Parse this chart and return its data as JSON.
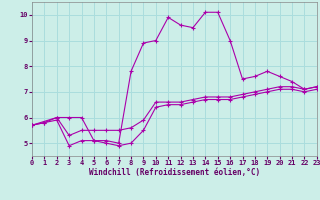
{
  "xlabel": "Windchill (Refroidissement éolien,°C)",
  "bg_color": "#cceee8",
  "grid_color": "#aadddd",
  "line_color": "#aa00aa",
  "xlim": [
    0,
    23
  ],
  "ylim": [
    4.5,
    10.5
  ],
  "xticks": [
    0,
    1,
    2,
    3,
    4,
    5,
    6,
    7,
    8,
    9,
    10,
    11,
    12,
    13,
    14,
    15,
    16,
    17,
    18,
    19,
    20,
    21,
    22,
    23
  ],
  "yticks": [
    5,
    6,
    7,
    8,
    9,
    10
  ],
  "lines": [
    {
      "x": [
        0,
        1,
        2,
        3,
        4,
        5,
        6,
        7,
        8,
        9,
        10,
        11,
        12,
        13,
        14,
        15,
        16,
        17,
        18,
        19,
        20,
        21,
        22,
        23
      ],
      "y": [
        5.7,
        5.8,
        5.9,
        4.9,
        5.1,
        5.1,
        5.0,
        4.9,
        5.0,
        5.5,
        6.4,
        6.5,
        6.5,
        6.6,
        6.7,
        6.7,
        6.7,
        6.8,
        6.9,
        7.0,
        7.1,
        7.1,
        7.0,
        7.1
      ]
    },
    {
      "x": [
        0,
        1,
        2,
        3,
        4,
        5,
        6,
        7,
        8,
        9,
        10,
        11,
        12,
        13,
        14,
        15,
        16,
        17,
        18,
        19,
        20,
        21,
        22,
        23
      ],
      "y": [
        5.7,
        5.8,
        6.0,
        5.3,
        5.5,
        5.5,
        5.5,
        5.5,
        5.6,
        5.9,
        6.6,
        6.6,
        6.6,
        6.7,
        6.8,
        6.8,
        6.8,
        6.9,
        7.0,
        7.1,
        7.2,
        7.2,
        7.1,
        7.2
      ]
    },
    {
      "x": [
        0,
        2,
        3,
        4,
        5,
        6,
        7,
        8,
        9,
        10,
        11,
        12,
        13,
        14,
        15,
        16,
        17,
        18,
        19,
        20,
        21,
        22,
        23
      ],
      "y": [
        5.7,
        6.0,
        6.0,
        6.0,
        5.1,
        5.1,
        5.0,
        7.8,
        8.9,
        9.0,
        9.9,
        9.6,
        9.5,
        10.1,
        10.1,
        9.0,
        7.5,
        7.6,
        7.8,
        7.6,
        7.4,
        7.1,
        7.2
      ]
    }
  ]
}
